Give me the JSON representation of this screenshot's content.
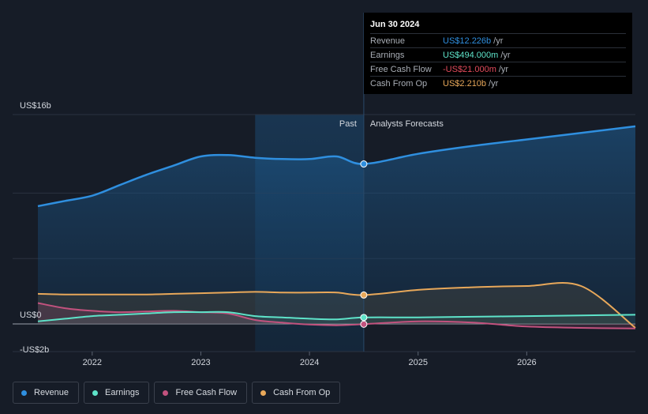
{
  "tooltip": {
    "date": "Jun 30 2024",
    "rows": [
      {
        "label": "Revenue",
        "value": "US$12.226b",
        "unit": "/yr",
        "color": "#2f8fdf"
      },
      {
        "label": "Earnings",
        "value": "US$494.000m",
        "unit": "/yr",
        "color": "#5ee3c9"
      },
      {
        "label": "Free Cash Flow",
        "value": "-US$21.000m",
        "unit": "/yr",
        "color": "#e34b5c"
      },
      {
        "label": "Cash From Op",
        "value": "US$2.210b",
        "unit": "/yr",
        "color": "#e8a85a"
      }
    ]
  },
  "legend": [
    {
      "label": "Revenue",
      "color": "#2f8fdf"
    },
    {
      "label": "Earnings",
      "color": "#5ee3c9"
    },
    {
      "label": "Free Cash Flow",
      "color": "#c2527e"
    },
    {
      "label": "Cash From Op",
      "color": "#e8a85a"
    }
  ],
  "chart_data": {
    "type": "line",
    "title": "",
    "xlabel": "",
    "ylabel": "",
    "y_tick_labels": [
      "US$16b",
      "US$0",
      "-US$2b"
    ],
    "x_tick_labels": [
      "2022",
      "2023",
      "2024",
      "2025",
      "2026"
    ],
    "x_ticks": [
      2022,
      2023,
      2024,
      2025,
      2026
    ],
    "xlim": [
      2021.5,
      2027.0
    ],
    "ylim": [
      -2,
      16
    ],
    "divider_x": 2024.5,
    "highlight_start_x": 2023.5,
    "past_label": "Past",
    "forecast_label": "Analysts Forecasts",
    "series": [
      {
        "name": "Revenue",
        "color": "#2f8fdf",
        "x": [
          2021.5,
          2021.75,
          2022.0,
          2022.25,
          2022.5,
          2022.75,
          2023.0,
          2023.25,
          2023.5,
          2023.75,
          2024.0,
          2024.25,
          2024.5,
          2025.0,
          2025.5,
          2026.0,
          2026.5,
          2027.0
        ],
        "values": [
          9.0,
          9.4,
          9.8,
          10.6,
          11.4,
          12.1,
          12.8,
          12.9,
          12.7,
          12.6,
          12.6,
          12.8,
          12.226,
          13.0,
          13.6,
          14.1,
          14.6,
          15.1
        ]
      },
      {
        "name": "Earnings",
        "color": "#5ee3c9",
        "x": [
          2021.5,
          2021.75,
          2022.0,
          2022.25,
          2022.5,
          2022.75,
          2023.0,
          2023.25,
          2023.5,
          2023.75,
          2024.0,
          2024.25,
          2024.5,
          2025.0,
          2025.5,
          2026.0,
          2026.5,
          2027.0
        ],
        "values": [
          0.2,
          0.4,
          0.6,
          0.7,
          0.8,
          0.9,
          0.9,
          0.9,
          0.6,
          0.5,
          0.4,
          0.35,
          0.494,
          0.5,
          0.55,
          0.6,
          0.65,
          0.7
        ]
      },
      {
        "name": "Free Cash Flow",
        "color": "#c2527e",
        "x": [
          2021.5,
          2021.75,
          2022.0,
          2022.25,
          2022.5,
          2022.75,
          2023.0,
          2023.25,
          2023.5,
          2023.75,
          2024.0,
          2024.25,
          2024.5,
          2025.0,
          2025.5,
          2026.0,
          2026.5,
          2027.0
        ],
        "values": [
          1.6,
          1.2,
          1.0,
          0.9,
          0.95,
          1.0,
          0.9,
          0.8,
          0.3,
          0.1,
          -0.05,
          -0.1,
          -0.021,
          0.2,
          0.1,
          -0.2,
          -0.3,
          -0.35
        ]
      },
      {
        "name": "Cash From Op",
        "color": "#e8a85a",
        "x": [
          2021.5,
          2021.75,
          2022.0,
          2022.25,
          2022.5,
          2022.75,
          2023.0,
          2023.25,
          2023.5,
          2023.75,
          2024.0,
          2024.25,
          2024.5,
          2025.0,
          2025.5,
          2026.0,
          2026.5,
          2027.0
        ],
        "values": [
          2.3,
          2.25,
          2.25,
          2.25,
          2.25,
          2.3,
          2.35,
          2.4,
          2.45,
          2.4,
          2.4,
          2.4,
          2.21,
          2.6,
          2.8,
          2.9,
          2.9,
          -0.3
        ]
      }
    ]
  }
}
